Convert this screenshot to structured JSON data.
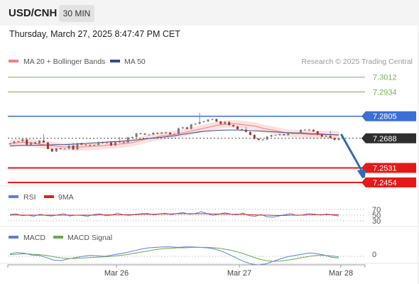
{
  "header": {
    "symbol": "USD/CNH",
    "timeframe": "30 MIN",
    "datetime": "Thursday, March 27, 2025 8:47:47 PM CET"
  },
  "colors": {
    "ma20": "#f08080",
    "ma50": "#2c4f8f",
    "bollinger_fill": "#fde0e0",
    "target_green": "#79b04a",
    "pivot_blue": "#3b6fd8",
    "support_red": "#e61919",
    "current_dark": "#2f2f2f",
    "arrow": "#2f6db0",
    "rsi": "#5b7fd9",
    "rsi_ma": "#e02020",
    "macd": "#5b7fd9",
    "macd_signal": "#6aa84f"
  },
  "chart_data": [
    {
      "type": "candlestick",
      "panel": "price",
      "legend": [
        {
          "name": "MA 20 + Bollinger Bands",
          "color": "#f08080"
        },
        {
          "name": "MA 50",
          "color": "#2c4f8f"
        }
      ],
      "legend_position": "top-left",
      "credit": "Research © 2025 Trading Central",
      "x_ticks": [
        "Mar 26",
        "Mar 27",
        "Mar 28"
      ],
      "ylim": [
        7.245,
        7.306
      ],
      "levels": [
        {
          "value": 7.3012,
          "label": "7.3012",
          "color": "#79b04a",
          "role": "target"
        },
        {
          "value": 7.2934,
          "label": "7.2934",
          "color": "#79b04a",
          "role": "target"
        },
        {
          "value": 7.2805,
          "label": "7.2805",
          "color": "#3b6fd8",
          "role": "pivot"
        },
        {
          "value": 7.2688,
          "label": "7.2688",
          "color": "#2f2f2f",
          "role": "last"
        },
        {
          "value": 7.2531,
          "label": "7.2531",
          "color": "#e61919",
          "role": "support"
        },
        {
          "value": 7.2454,
          "label": "7.2454",
          "color": "#e61919",
          "role": "support"
        }
      ],
      "close": [
        7.2661,
        7.2671,
        7.2672,
        7.2682,
        7.2654,
        7.2666,
        7.266,
        7.2676,
        7.2666,
        7.2632,
        7.2618,
        7.2635,
        7.2632,
        7.2633,
        7.2649,
        7.2629,
        7.2662,
        7.2654,
        7.2653,
        7.265,
        7.2653,
        7.2668,
        7.2663,
        7.2666,
        7.265,
        7.2671,
        7.2667,
        7.2666,
        7.2693,
        7.2695,
        7.2714,
        7.2713,
        7.2708,
        7.2708,
        7.2717,
        7.2713,
        7.2719,
        7.2718,
        7.2709,
        7.2711,
        7.2741,
        7.2746,
        7.2738,
        7.2762,
        7.2765,
        7.2774,
        7.2778,
        7.2787,
        7.279,
        7.2777,
        7.2764,
        7.2775,
        7.2758,
        7.2751,
        7.2736,
        7.2734,
        7.2722,
        7.2706,
        7.2686,
        7.2679,
        7.2682,
        7.2697,
        7.2705,
        7.2705,
        7.271,
        7.2705,
        7.2714,
        7.2716,
        7.2716,
        7.2733,
        7.2734,
        7.2733,
        7.2725,
        7.2708,
        7.2697,
        7.2701,
        7.269,
        7.268,
        7.2688
      ],
      "ma20": [
        7.266,
        7.2665,
        7.2667,
        7.2663,
        7.2656,
        7.2652,
        7.2647,
        7.2642,
        7.2642,
        7.2642,
        7.2643,
        7.2646,
        7.2648,
        7.2653,
        7.2656,
        7.266,
        7.2665,
        7.2675,
        7.2686,
        7.2693,
        7.2702,
        7.2705,
        7.2712,
        7.272,
        7.2729,
        7.2738,
        7.2747,
        7.2756,
        7.2762,
        7.2765,
        7.2763,
        7.2758,
        7.2753,
        7.2742,
        7.2734,
        7.2726,
        7.2718,
        7.2714,
        7.2712,
        7.2709,
        7.2707,
        7.2707,
        7.2708,
        7.2707
      ],
      "ma50": [
        7.2648,
        7.265,
        7.265,
        7.2651,
        7.2652,
        7.2654,
        7.2655,
        7.2657,
        7.266,
        7.2663,
        7.2666,
        7.2669,
        7.2671,
        7.2675,
        7.268,
        7.2686,
        7.269,
        7.2696,
        7.2701,
        7.271,
        7.2717,
        7.2724,
        7.2728,
        7.2731,
        7.2732,
        7.2732,
        7.273,
        7.2727,
        7.2725,
        7.2722,
        7.2719,
        7.2717,
        7.2716,
        7.2713,
        7.2711,
        7.2708,
        7.2705
      ]
    },
    {
      "type": "line",
      "panel": "rsi",
      "series": [
        {
          "name": "RSI",
          "color": "#5b7fd9"
        },
        {
          "name": "9MA",
          "color": "#e02020"
        }
      ],
      "y_ticks": [
        "70",
        "50",
        "30"
      ],
      "rsi": [
        52,
        55,
        48,
        50,
        46,
        53,
        49,
        47,
        51,
        55,
        47,
        50,
        49,
        46,
        52,
        55,
        48,
        50,
        57,
        51,
        49,
        53,
        55,
        56,
        51,
        54,
        57,
        52,
        56,
        59,
        53,
        56,
        62,
        55,
        49,
        54,
        58,
        53,
        51,
        57,
        48,
        46,
        52,
        44,
        43,
        47,
        52,
        55,
        49,
        51,
        56,
        53,
        50,
        54,
        50,
        47
      ],
      "ma9": [
        50,
        51,
        50,
        50,
        50,
        50,
        50,
        50,
        50,
        50,
        50,
        50,
        50,
        50,
        50,
        51,
        51,
        51,
        51,
        51,
        52,
        52,
        53,
        53,
        53,
        54,
        54,
        54,
        55,
        55,
        55,
        55,
        55,
        55,
        54,
        54,
        54,
        53,
        53,
        53,
        52,
        51,
        50,
        50,
        49,
        49,
        49,
        50,
        50,
        50,
        51,
        51,
        52,
        52,
        52,
        51
      ]
    },
    {
      "type": "line",
      "panel": "macd",
      "series": [
        {
          "name": "MACD",
          "color": "#5b7fd9"
        },
        {
          "name": "MACD Signal",
          "color": "#6aa84f"
        }
      ],
      "y_ticks": [
        "0"
      ],
      "macd": [
        0.6,
        0.9,
        0.7,
        0.3,
        0.2,
        -0.3,
        -0.9,
        -1.0,
        -0.6,
        -0.3,
        0.0,
        0.2,
        0.1,
        0.0,
        0.3,
        0.6,
        0.9,
        1.3,
        1.7,
        2.0,
        2.1,
        2.2,
        2.2,
        2.1,
        2.2,
        2.2,
        2.1,
        2.0,
        1.7,
        1.2,
        0.4,
        -0.4,
        -1.2,
        -1.8,
        -2.0,
        -1.8,
        -1.2,
        -0.6,
        -0.1,
        0.2,
        0.5,
        0.8,
        0.6,
        0.3,
        -0.2,
        -0.4
      ],
      "signal": [
        0.4,
        0.5,
        0.6,
        0.5,
        0.4,
        0.2,
        -0.1,
        -0.4,
        -0.5,
        -0.5,
        -0.4,
        -0.3,
        -0.2,
        -0.1,
        0.0,
        0.2,
        0.4,
        0.7,
        1.0,
        1.3,
        1.6,
        1.8,
        1.9,
        2.0,
        2.0,
        2.1,
        2.1,
        2.1,
        2.0,
        1.8,
        1.5,
        1.1,
        0.6,
        0.0,
        -0.6,
        -1.0,
        -1.2,
        -1.1,
        -0.9,
        -0.6,
        -0.3,
        0.0,
        0.2,
        0.2,
        0.1,
        -0.1
      ]
    }
  ]
}
